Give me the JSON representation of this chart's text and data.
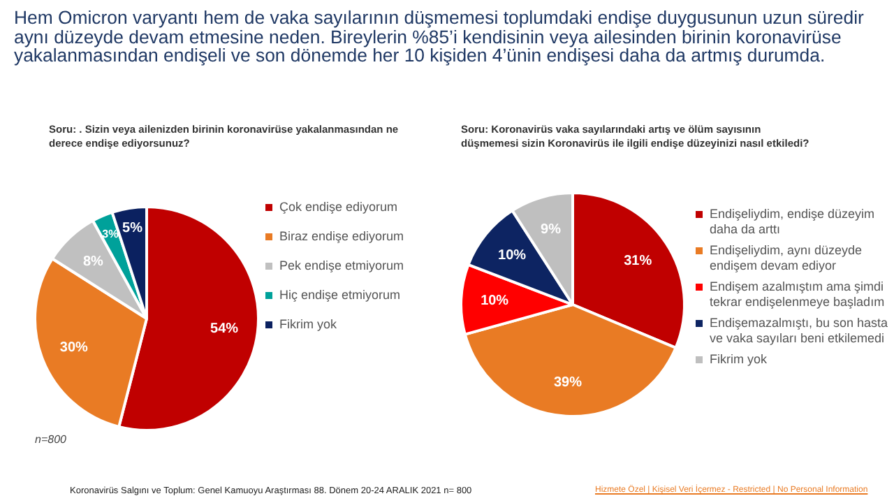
{
  "chart_data": [
    {
      "type": "pie",
      "title": "Hem Omicron varyantı hem de vaka sayılarının düşmemesi toplumdaki endişe duygusunun uzun süredir aynı düzeyde devam etmesine neden. Bireylerin %85’i kendisinin veya ailesinden birinin koronavirüse yakalanmasından endişeli ve son dönemde her 10 kişiden 4’ünin endişesi daha da artmış durumda.",
      "subtitle": "Soru: .  Sizin veya ailenizden birinin  koronavirüse yakalanmasından ne derece endişe ediyorsunuz?",
      "categories": [
        "Çok endişe ediyorum",
        "Biraz endişe ediyorum",
        "Pek endişe etmiyorum",
        "Hiç endişe etmiyorum",
        "Fikrim yok"
      ],
      "values": [
        54,
        30,
        8,
        3,
        5
      ],
      "colors": [
        "#c00000",
        "#e97b24",
        "#c0c0c0",
        "#00a19a",
        "#0b2160"
      ],
      "value_labels": [
        "54%",
        "30%",
        "8%",
        "3%",
        "5%"
      ],
      "legend": "right",
      "annotations": [
        "n=800"
      ]
    },
    {
      "type": "pie",
      "title": "Soru:  Koronavirüs vaka sayılarındaki artış ve ölüm sayısının düşmemesi sizin Koronavirüs ile ilgili  endişe düzeyinizi nasıl etkiledi?",
      "categories": [
        "Endişeliydim, endişe düzeyim daha da arttı",
        "Endişeliydim, aynı düzeyde endişem devam ediyor",
        " Endişem azalmıştım ama şimdi tekrar endişelenmeye başladım",
        " Endişemazalmıştı, bu son hasta ve vaka sayıları beni etkilemedi",
        " Fikrim yok"
      ],
      "values": [
        31,
        39,
        10,
        10,
        9
      ],
      "colors": [
        "#c00000",
        "#e97b24",
        "#ff0000",
        "#0d2462",
        "#bfbfbf"
      ],
      "value_labels": [
        "31%",
        "39%",
        "10%",
        "10%",
        "9%"
      ],
      "legend": "right",
      "annotations": [
        "Koronavirüs  Salgını ve Toplum:  Genel Kamuoyu Araştırması 88. Dönem  20-24  ARALIK 2021   n= 800",
        "Hizmete Özel | Kişisel Veri İçermez - Restricted | No Personal Information"
      ]
    }
  ]
}
